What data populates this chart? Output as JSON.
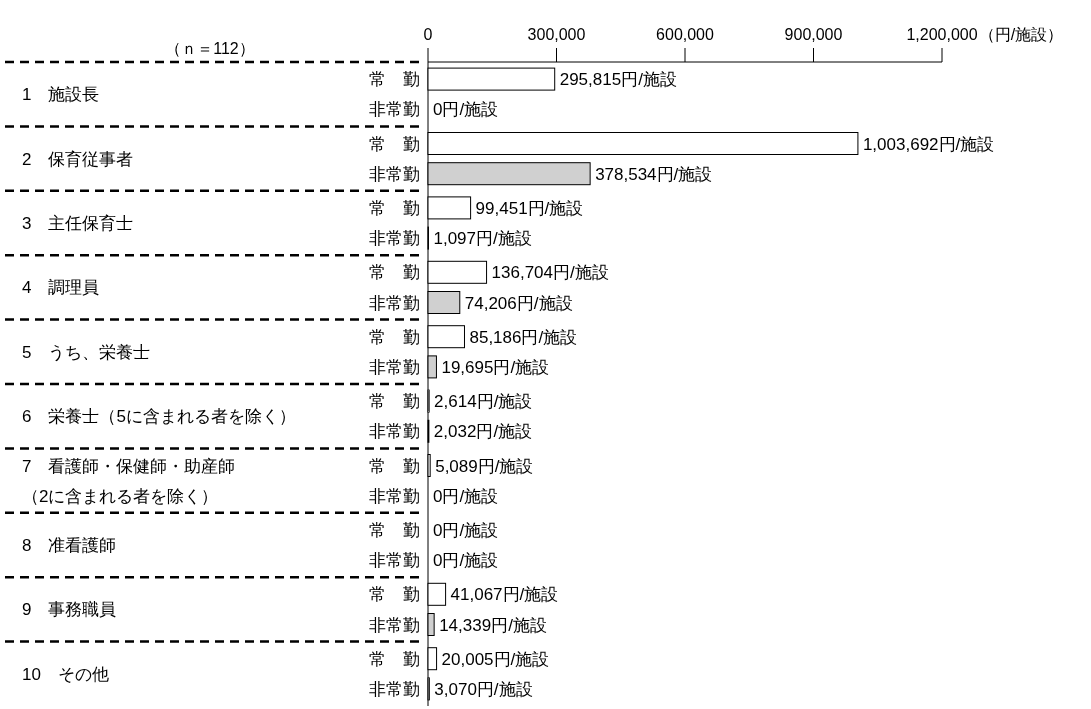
{
  "chart_data": {
    "type": "bar",
    "orientation": "horizontal",
    "xlabel": "（円/施設）",
    "annotations": [
      "（ｎ＝112）"
    ],
    "categories": [
      "1　施設長",
      "2　保育従事者",
      "3　主任保育士",
      "4　調理員",
      "5　うち、栄養士",
      "6　栄養士（5に含まれる者を除く）",
      "7　看護師・保健師・助産師（2に含まれる者を除く）",
      "8　准看護師",
      "9　事務職員",
      "10　その他"
    ],
    "series": [
      {
        "name": "常　勤",
        "color": "#ffffff",
        "values": [
          295815,
          1003692,
          99451,
          136704,
          85186,
          2614,
          5089,
          0,
          41067,
          20005
        ],
        "value_labels": [
          "295,815円/施設",
          "1,003,692円/施設",
          "99,451円/施設",
          "136,704円/施設",
          "85,186円/施設",
          "2,614円/施設",
          "5,089円/施設",
          "0円/施設",
          "41,067円/施設",
          "20,005円/施設"
        ]
      },
      {
        "name": "非常勤",
        "color": "#d0d0d0",
        "values": [
          0,
          378534,
          1097,
          74206,
          19695,
          2032,
          0,
          0,
          14339,
          3070
        ],
        "value_labels": [
          "0円/施設",
          "378,534円/施設",
          "1,097円/施設",
          "74,206円/施設",
          "19,695円/施設",
          "2,032円/施設",
          "0円/施設",
          "0円/施設",
          "14,339円/施設",
          "3,070円/施設"
        ]
      }
    ],
    "xlim": [
      0,
      1200000
    ],
    "xticks": [
      {
        "value": 0,
        "label": "0"
      },
      {
        "value": 300000,
        "label": "300,000"
      },
      {
        "value": 600000,
        "label": "600,000"
      },
      {
        "value": 900000,
        "label": "900,000"
      },
      {
        "value": 1200000,
        "label": "1,200,000"
      }
    ],
    "grid": false,
    "legend": false
  }
}
